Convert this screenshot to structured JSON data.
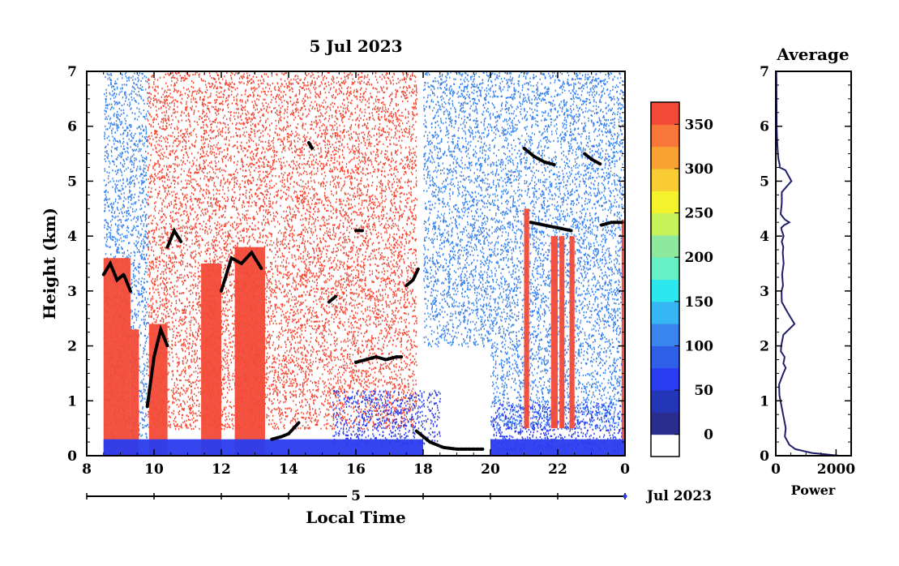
{
  "chart_data": [
    {
      "type": "heatmap",
      "title": "5 Jul 2023",
      "xlabel": "Local Time",
      "ylabel": "Height (km)",
      "x_ticks": [
        "8",
        "10",
        "12",
        "14",
        "16",
        "18",
        "20",
        "22",
        "0"
      ],
      "x_tick_values": [
        8,
        10,
        12,
        14,
        16,
        18,
        20,
        22,
        24
      ],
      "y_ticks": [
        "0",
        "1",
        "2",
        "3",
        "4",
        "5",
        "6",
        "7"
      ],
      "y_tick_values": [
        0,
        1,
        2,
        3,
        4,
        5,
        6,
        7
      ],
      "xlim": [
        8,
        24
      ],
      "ylim": [
        0,
        7
      ],
      "date_day": "5",
      "date_month_year": "Jul 2023",
      "grid": false,
      "colorbar": {
        "ticks": [
          "0",
          "50",
          "100",
          "150",
          "200",
          "250",
          "300",
          "350"
        ],
        "tick_values": [
          0,
          50,
          100,
          150,
          200,
          250,
          300,
          350
        ],
        "range": [
          -25,
          375
        ],
        "levels": [
          {
            "from": -25,
            "to": 0,
            "color": "#ffffff"
          },
          {
            "from": 0,
            "to": 25,
            "color": "#2a2c8e"
          },
          {
            "from": 25,
            "to": 50,
            "color": "#2436b8"
          },
          {
            "from": 50,
            "to": 75,
            "color": "#2a3cf0"
          },
          {
            "from": 75,
            "to": 100,
            "color": "#2f5fe6"
          },
          {
            "from": 100,
            "to": 125,
            "color": "#3a84ee"
          },
          {
            "from": 125,
            "to": 150,
            "color": "#36b6f2"
          },
          {
            "from": 150,
            "to": 175,
            "color": "#2ce8ee"
          },
          {
            "from": 175,
            "to": 200,
            "color": "#66f0c6"
          },
          {
            "from": 200,
            "to": 225,
            "color": "#8ee89e"
          },
          {
            "from": 225,
            "to": 250,
            "color": "#c8f25a"
          },
          {
            "from": 250,
            "to": 275,
            "color": "#f4f22a"
          },
          {
            "from": 275,
            "to": 300,
            "color": "#f8cc32"
          },
          {
            "from": 300,
            "to": 325,
            "color": "#f8a232"
          },
          {
            "from": 325,
            "to": 350,
            "color": "#f8763a"
          },
          {
            "from": 350,
            "to": 375,
            "color": "#f24a36"
          }
        ]
      },
      "regions": [
        {
          "x": [
            8.5,
            9.3
          ],
          "y": [
            0,
            3.6
          ],
          "color": "#f24a36"
        },
        {
          "x": [
            9.3,
            9.55
          ],
          "y": [
            0,
            2.3
          ],
          "color": "#f24a36"
        },
        {
          "x": [
            9.85,
            10.4
          ],
          "y": [
            0,
            2.4
          ],
          "color": "#f24a36"
        },
        {
          "x": [
            11.4,
            12.0
          ],
          "y": [
            0,
            3.5
          ],
          "color": "#f24a36"
        },
        {
          "x": [
            12.4,
            13.3
          ],
          "y": [
            0,
            3.8
          ],
          "color": "#f24a36"
        },
        {
          "x": [
            21.0,
            21.15
          ],
          "y": [
            0.5,
            4.5
          ],
          "color": "#f24a36"
        },
        {
          "x": [
            21.8,
            22.0
          ],
          "y": [
            0.5,
            4.0
          ],
          "color": "#f24a36"
        },
        {
          "x": [
            22.05,
            22.2
          ],
          "y": [
            0.5,
            4.0
          ],
          "color": "#f24a36"
        },
        {
          "x": [
            22.35,
            22.5
          ],
          "y": [
            0.5,
            4.0
          ],
          "color": "#f24a36"
        },
        {
          "x": [
            23.9,
            24.0
          ],
          "y": [
            0.3,
            4.3
          ],
          "color": "#f24a36"
        },
        {
          "x": [
            8.5,
            18.0
          ],
          "y": [
            0,
            0.3
          ],
          "color": "#2a3cf0"
        },
        {
          "x": [
            20.0,
            24.0
          ],
          "y": [
            0,
            0.3
          ],
          "color": "#2a3cf0"
        }
      ],
      "speckle_fields": [
        {
          "x": [
            8.5,
            9.8
          ],
          "y": [
            0.3,
            7
          ],
          "color": "#3a84ee"
        },
        {
          "x": [
            9.8,
            15.3
          ],
          "y": [
            0.5,
            7
          ],
          "color": "#f24a36"
        },
        {
          "x": [
            15.3,
            17.8
          ],
          "y": [
            0.5,
            7
          ],
          "color": "#f24a36"
        },
        {
          "x": [
            15.3,
            18.5
          ],
          "y": [
            0.2,
            1.2
          ],
          "color": "#2a3cf0"
        },
        {
          "x": [
            18.0,
            20.0
          ],
          "y": [
            2.0,
            7
          ],
          "color": "#3a84ee"
        },
        {
          "x": [
            20.0,
            24.0
          ],
          "y": [
            0.5,
            7
          ],
          "color": "#3a84ee"
        },
        {
          "x": [
            20.0,
            24.0
          ],
          "y": [
            0.1,
            1.0
          ],
          "color": "#2a3cf0"
        }
      ],
      "layer_traces": [
        {
          "x": [
            8.5,
            8.7,
            8.9,
            9.1,
            9.3
          ],
          "y": [
            3.3,
            3.5,
            3.2,
            3.3,
            3.0
          ]
        },
        {
          "x": [
            9.8,
            10.0,
            10.2,
            10.4
          ],
          "y": [
            0.9,
            1.8,
            2.3,
            2.0
          ]
        },
        {
          "x": [
            10.4,
            10.6,
            10.8
          ],
          "y": [
            3.8,
            4.1,
            3.9
          ]
        },
        {
          "x": [
            12.0,
            12.3,
            12.6,
            12.9,
            13.2
          ],
          "y": [
            3.0,
            3.6,
            3.5,
            3.7,
            3.4
          ]
        },
        {
          "x": [
            13.5,
            13.8,
            14.0,
            14.3
          ],
          "y": [
            0.3,
            0.35,
            0.4,
            0.6
          ]
        },
        {
          "x": [
            14.6,
            14.7
          ],
          "y": [
            5.7,
            5.6
          ]
        },
        {
          "x": [
            15.2,
            15.4
          ],
          "y": [
            2.8,
            2.9
          ]
        },
        {
          "x": [
            16.0,
            16.3,
            16.6,
            16.9,
            17.2,
            17.4
          ],
          "y": [
            1.7,
            1.75,
            1.8,
            1.75,
            1.8,
            1.8
          ]
        },
        {
          "x": [
            16.0,
            16.2
          ],
          "y": [
            4.1,
            4.1
          ]
        },
        {
          "x": [
            17.5,
            17.7,
            17.85
          ],
          "y": [
            3.1,
            3.2,
            3.4
          ]
        },
        {
          "x": [
            17.8,
            18.2,
            18.6,
            19.0,
            19.4,
            19.8
          ],
          "y": [
            0.45,
            0.25,
            0.15,
            0.12,
            0.12,
            0.12
          ]
        },
        {
          "x": [
            21.0,
            21.3,
            21.6,
            21.9
          ],
          "y": [
            5.6,
            5.45,
            5.35,
            5.3
          ]
        },
        {
          "x": [
            22.8,
            23.0,
            23.3
          ],
          "y": [
            5.5,
            5.4,
            5.3
          ]
        },
        {
          "x": [
            21.2,
            21.6,
            22.0,
            22.4
          ],
          "y": [
            4.25,
            4.2,
            4.15,
            4.1
          ]
        },
        {
          "x": [
            23.3,
            23.6,
            23.9
          ],
          "y": [
            4.2,
            4.25,
            4.25
          ]
        }
      ]
    },
    {
      "type": "line",
      "title": "Average",
      "xlabel": "Power",
      "ylabel": "",
      "x_ticks": [
        "0",
        "2000"
      ],
      "x_tick_values": [
        0,
        2000
      ],
      "y_ticks": [
        "0",
        "1",
        "2",
        "3",
        "4",
        "5",
        "6",
        "7"
      ],
      "y_tick_values": [
        0,
        1,
        2,
        3,
        4,
        5,
        6,
        7
      ],
      "xlim": [
        0,
        2500
      ],
      "ylim": [
        0,
        7
      ],
      "grid": false,
      "series": [
        {
          "x": [
            2100,
            1200,
            650,
            450,
            300,
            330,
            260,
            190,
            120,
            110,
            250,
            330,
            250,
            280,
            290,
            170,
            180,
            250,
            620,
            400,
            200,
            190,
            240,
            210,
            260,
            230,
            250,
            200,
            260,
            200,
            180,
            280,
            450,
            300,
            160,
            200,
            200,
            520,
            320,
            130,
            130,
            90,
            70,
            60,
            40,
            30,
            25,
            20
          ],
          "y": [
            0.0,
            0.05,
            0.12,
            0.2,
            0.35,
            0.5,
            0.7,
            0.9,
            1.1,
            1.3,
            1.5,
            1.6,
            1.68,
            1.75,
            1.8,
            1.9,
            2.0,
            2.2,
            2.4,
            2.6,
            2.8,
            3.0,
            3.1,
            3.3,
            3.5,
            3.7,
            3.8,
            3.9,
            4.0,
            4.1,
            4.15,
            4.2,
            4.25,
            4.3,
            4.4,
            4.6,
            4.8,
            5.0,
            5.2,
            5.25,
            5.3,
            5.4,
            5.5,
            5.6,
            5.8,
            6.0,
            6.5,
            7.0
          ]
        }
      ]
    }
  ]
}
